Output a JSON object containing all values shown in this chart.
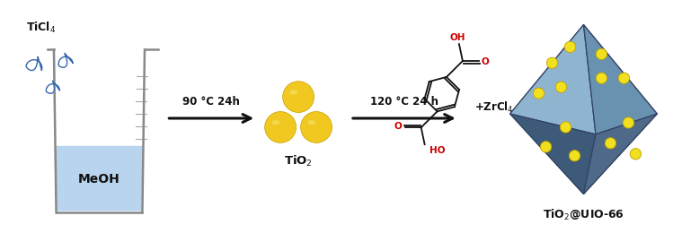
{
  "bg_color": "#ffffff",
  "liquid_color": "#b8d4ee",
  "droplet_fill": "#f0f4f8",
  "droplet_edge": "#3366aa",
  "tio2_color": "#f0c820",
  "tio2_edge": "#c8a000",
  "tio2_highlight": "#f8e060",
  "uio66_light": "#8aaecc",
  "uio66_mid": "#6688aa",
  "uio66_dark": "#445577",
  "uio66_edge": "#334466",
  "dot_color": "#f0e020",
  "dot_edge": "#c0a000",
  "arrow_color": "#111111",
  "text_color": "#111111",
  "red_color": "#cc0000",
  "beaker_color": "#888888",
  "label_ticl4": "TiCl$_4$",
  "label_meoh": "MeOH",
  "label_tio2": "TiO$_2$",
  "label_uio66": "TiO$_2$@UIO-66",
  "label_zrcl4": "+ZrCl$_4$",
  "label_arrow1": "90 °C 24h",
  "label_arrow2": "120 °C 24 h",
  "figsize": [
    7.49,
    2.6
  ],
  "dpi": 100
}
